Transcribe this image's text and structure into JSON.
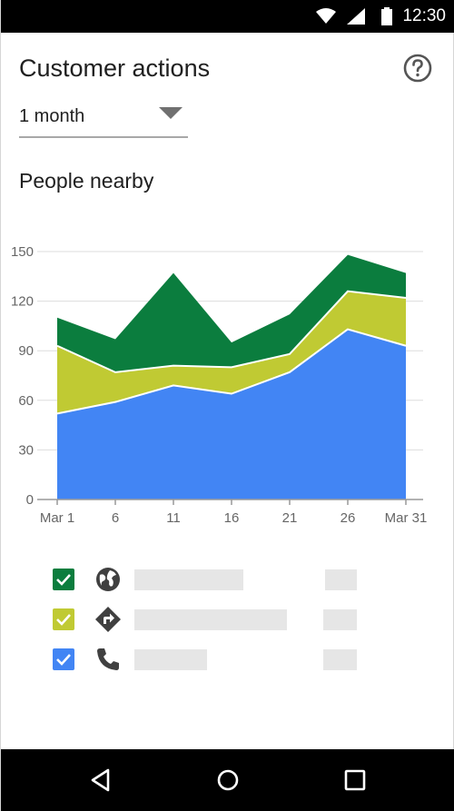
{
  "status_bar": {
    "time": "12:30",
    "icons": [
      "wifi-icon",
      "signal-icon",
      "battery-icon"
    ]
  },
  "header": {
    "title": "Customer actions",
    "help_icon": "help-circle-icon"
  },
  "range_select": {
    "value": "1 month"
  },
  "section": {
    "title": "People nearby"
  },
  "colors": {
    "series_top": "#0b7d3e",
    "series_mid": "#c0ca33",
    "series_base": "#4285f4",
    "grid": "#dddddd",
    "axis": "#999999"
  },
  "chart_data": {
    "type": "area",
    "stacked": true,
    "x": [
      1,
      6,
      11,
      16,
      21,
      26,
      31
    ],
    "x_tick_labels": [
      "Mar 1",
      "6",
      "11",
      "16",
      "21",
      "26",
      "Mar 31"
    ],
    "y_ticks": [
      0,
      30,
      60,
      90,
      120,
      150
    ],
    "ylim": [
      0,
      150
    ],
    "grid": true,
    "series": [
      {
        "values": [
          52,
          59,
          69,
          64,
          77,
          103,
          93
        ],
        "color": "#4285f4"
      },
      {
        "values": [
          41,
          18,
          12,
          16,
          11,
          23,
          29
        ],
        "color": "#c0ca33"
      },
      {
        "values": [
          17,
          20,
          56,
          15,
          24,
          22,
          15
        ],
        "color": "#0b7d3e"
      }
    ]
  },
  "legend": [
    {
      "checked": true,
      "color": "#0b7d3e",
      "icon": "globe-icon"
    },
    {
      "checked": true,
      "color": "#c0ca33",
      "icon": "directions-icon"
    },
    {
      "checked": true,
      "color": "#4285f4",
      "icon": "phone-icon"
    }
  ],
  "nav_bar": {
    "buttons": [
      "back-icon",
      "home-icon",
      "recents-icon"
    ]
  }
}
